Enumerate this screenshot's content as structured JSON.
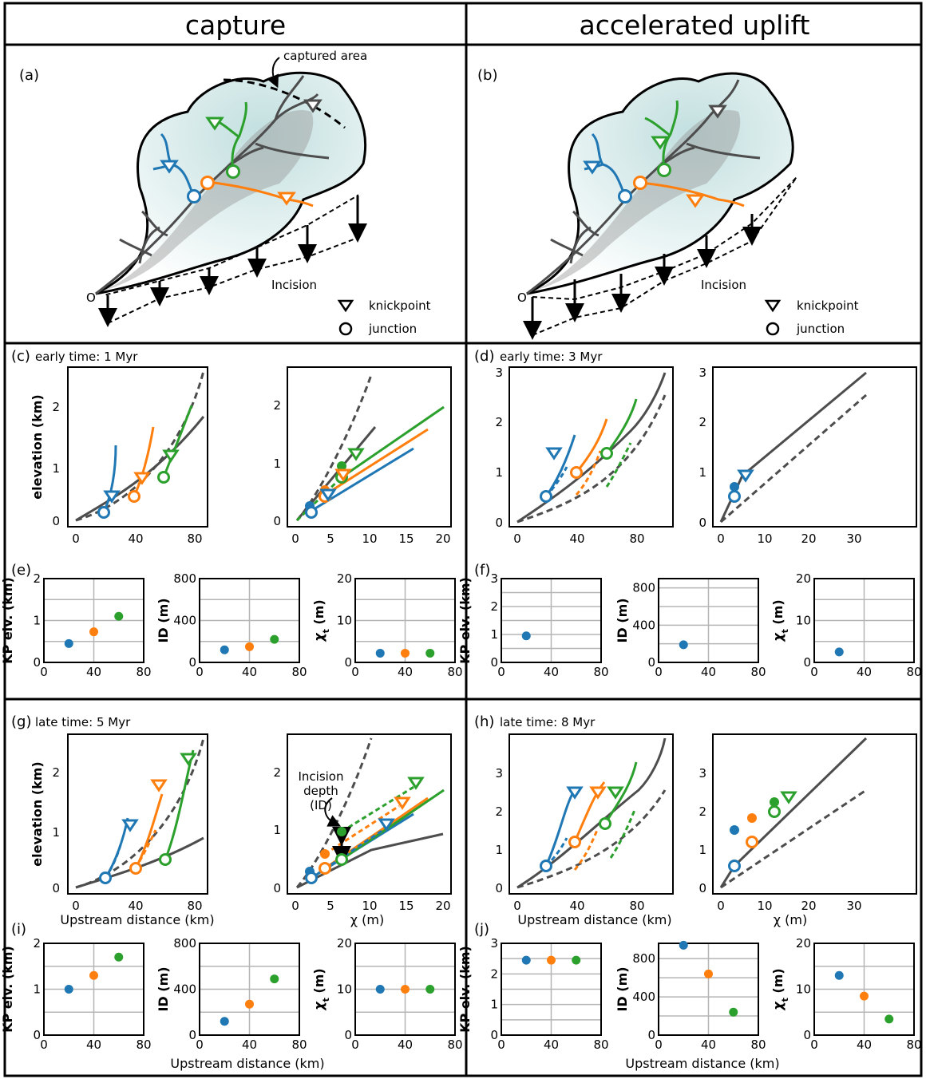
{
  "columns": {
    "left_title": "capture",
    "right_title": "accelerated uplift"
  },
  "panels": {
    "a": {
      "label": "(a)",
      "captured_area": "captured area",
      "incision": "Incision",
      "outlet": "O",
      "knickpoint": "knickpoint",
      "junction": "junction"
    },
    "b": {
      "label": "(b)",
      "incision": "Incision",
      "outlet": "O",
      "knickpoint": "knickpoint",
      "junction": "junction"
    },
    "c": {
      "label": "(c)",
      "time": "early time: 1 Myr"
    },
    "d": {
      "label": "(d)",
      "time": "early time: 3 Myr"
    },
    "e": {
      "label": "(e)"
    },
    "f": {
      "label": "(f)"
    },
    "g": {
      "label": "(g)",
      "time": "late time: 5 Myr",
      "annotation": [
        "Incision",
        "depth",
        "(ID)"
      ]
    },
    "h": {
      "label": "(h)",
      "time": "late time: 8 Myr"
    },
    "i": {
      "label": "(i)"
    },
    "j": {
      "label": "(j)"
    }
  },
  "axes": {
    "elevation": "elevation (km)",
    "upstream_distance": "Upstream distance (km)",
    "chi": "χ (m)",
    "kp_elv": "KP elv. (km)",
    "id": "ID (m)",
    "chi_t": "χ",
    "chi_t_sub": "t",
    "chi_t_unit": " (m)"
  },
  "colors": {
    "blue": "#1f77b4",
    "orange": "#ff7f0e",
    "green": "#2ca02c",
    "trunk": "#4d4d4d",
    "basin_fill": "#d8ecec"
  },
  "chart_data": [
    {
      "panel": "e",
      "type": "scatter",
      "ylabel": "KP elv. (km)",
      "x": [
        20,
        40,
        60
      ],
      "y": [
        0.45,
        0.73,
        1.1
      ],
      "xlim": [
        0,
        80
      ],
      "ylim": [
        0,
        2
      ],
      "xticks": [
        "0",
        "40",
        "80"
      ],
      "yticks": [
        "0",
        "1",
        "2"
      ]
    },
    {
      "panel": "e",
      "type": "scatter",
      "ylabel": "ID (m)",
      "x": [
        20,
        40,
        60
      ],
      "y": [
        120,
        150,
        220
      ],
      "xlim": [
        0,
        80
      ],
      "ylim": [
        0,
        800
      ],
      "xticks": [
        "0",
        "40",
        "80"
      ],
      "yticks": [
        "0",
        "400",
        "800"
      ]
    },
    {
      "panel": "e",
      "type": "scatter",
      "ylabel": "χt (m)",
      "x": [
        20,
        40,
        60
      ],
      "y": [
        2.2,
        2.2,
        2.2
      ],
      "xlim": [
        0,
        80
      ],
      "ylim": [
        0,
        20
      ],
      "xticks": [
        "0",
        "40",
        "80"
      ],
      "yticks": [
        "0",
        "10",
        "20"
      ]
    },
    {
      "panel": "f",
      "type": "scatter",
      "ylabel": "KP elv. (km)",
      "x": [
        20
      ],
      "y": [
        0.95
      ],
      "xlim": [
        0,
        80
      ],
      "ylim": [
        0,
        3
      ],
      "xticks": [
        "0",
        "40",
        "80"
      ],
      "yticks": [
        "0",
        "1",
        "2",
        "3"
      ]
    },
    {
      "panel": "f",
      "type": "scatter",
      "ylabel": "ID (m)",
      "x": [
        20
      ],
      "y": [
        190
      ],
      "xlim": [
        0,
        80
      ],
      "ylim": [
        0,
        900
      ],
      "xticks": [
        "0",
        "40",
        "80"
      ],
      "yticks": [
        "0",
        "400",
        "800"
      ]
    },
    {
      "panel": "f",
      "type": "scatter",
      "ylabel": "χt (m)",
      "x": [
        20
      ],
      "y": [
        2.5
      ],
      "xlim": [
        0,
        80
      ],
      "ylim": [
        0,
        20
      ],
      "xticks": [
        "0",
        "40",
        "80"
      ],
      "yticks": [
        "0",
        "10",
        "20"
      ]
    },
    {
      "panel": "i",
      "type": "scatter",
      "ylabel": "KP elv. (km)",
      "xlabel": "Upstream distance (km)",
      "x": [
        20,
        40,
        60
      ],
      "y": [
        1.0,
        1.3,
        1.7
      ],
      "xlim": [
        0,
        80
      ],
      "ylim": [
        0,
        2
      ],
      "xticks": [
        "0",
        "40",
        "80"
      ],
      "yticks": [
        "0",
        "1",
        "2"
      ]
    },
    {
      "panel": "i",
      "type": "scatter",
      "ylabel": "ID (m)",
      "xlabel": "Upstream distance (km)",
      "x": [
        20,
        40,
        60
      ],
      "y": [
        120,
        270,
        490
      ],
      "xlim": [
        0,
        80
      ],
      "ylim": [
        0,
        800
      ],
      "xticks": [
        "0",
        "40",
        "80"
      ],
      "yticks": [
        "0",
        "400",
        "800"
      ]
    },
    {
      "panel": "i",
      "type": "scatter",
      "ylabel": "χt (m)",
      "xlabel": "Upstream distance (km)",
      "x": [
        20,
        40,
        60
      ],
      "y": [
        10,
        10,
        10
      ],
      "xlim": [
        0,
        80
      ],
      "ylim": [
        0,
        20
      ],
      "xticks": [
        "0",
        "40",
        "80"
      ],
      "yticks": [
        "0",
        "10",
        "20"
      ]
    },
    {
      "panel": "j",
      "type": "scatter",
      "ylabel": "KP elv. (km)",
      "xlabel": "Upstream distance (km)",
      "x": [
        20,
        40,
        60
      ],
      "y": [
        2.45,
        2.45,
        2.45
      ],
      "xlim": [
        0,
        80
      ],
      "ylim": [
        0,
        3
      ],
      "xticks": [
        "0",
        "40",
        "80"
      ],
      "yticks": [
        "0",
        "1",
        "2",
        "3"
      ]
    },
    {
      "panel": "j",
      "type": "scatter",
      "ylabel": "ID (m)",
      "xlabel": "Upstream distance (km)",
      "x": [
        20,
        40,
        60
      ],
      "y": [
        940,
        640,
        240
      ],
      "xlim": [
        0,
        80
      ],
      "ylim": [
        0,
        960
      ],
      "xticks": [
        "0",
        "40",
        "80"
      ],
      "yticks": [
        "0",
        "400",
        "800"
      ]
    },
    {
      "panel": "j",
      "type": "scatter",
      "ylabel": "χt (m)",
      "xlabel": "Upstream distance (km)",
      "x": [
        20,
        40,
        60
      ],
      "y": [
        13,
        8.5,
        3.5
      ],
      "xlim": [
        0,
        80
      ],
      "ylim": [
        0,
        20
      ],
      "xticks": [
        "0",
        "40",
        "80"
      ],
      "yticks": [
        "0",
        "10",
        "20"
      ]
    }
  ]
}
